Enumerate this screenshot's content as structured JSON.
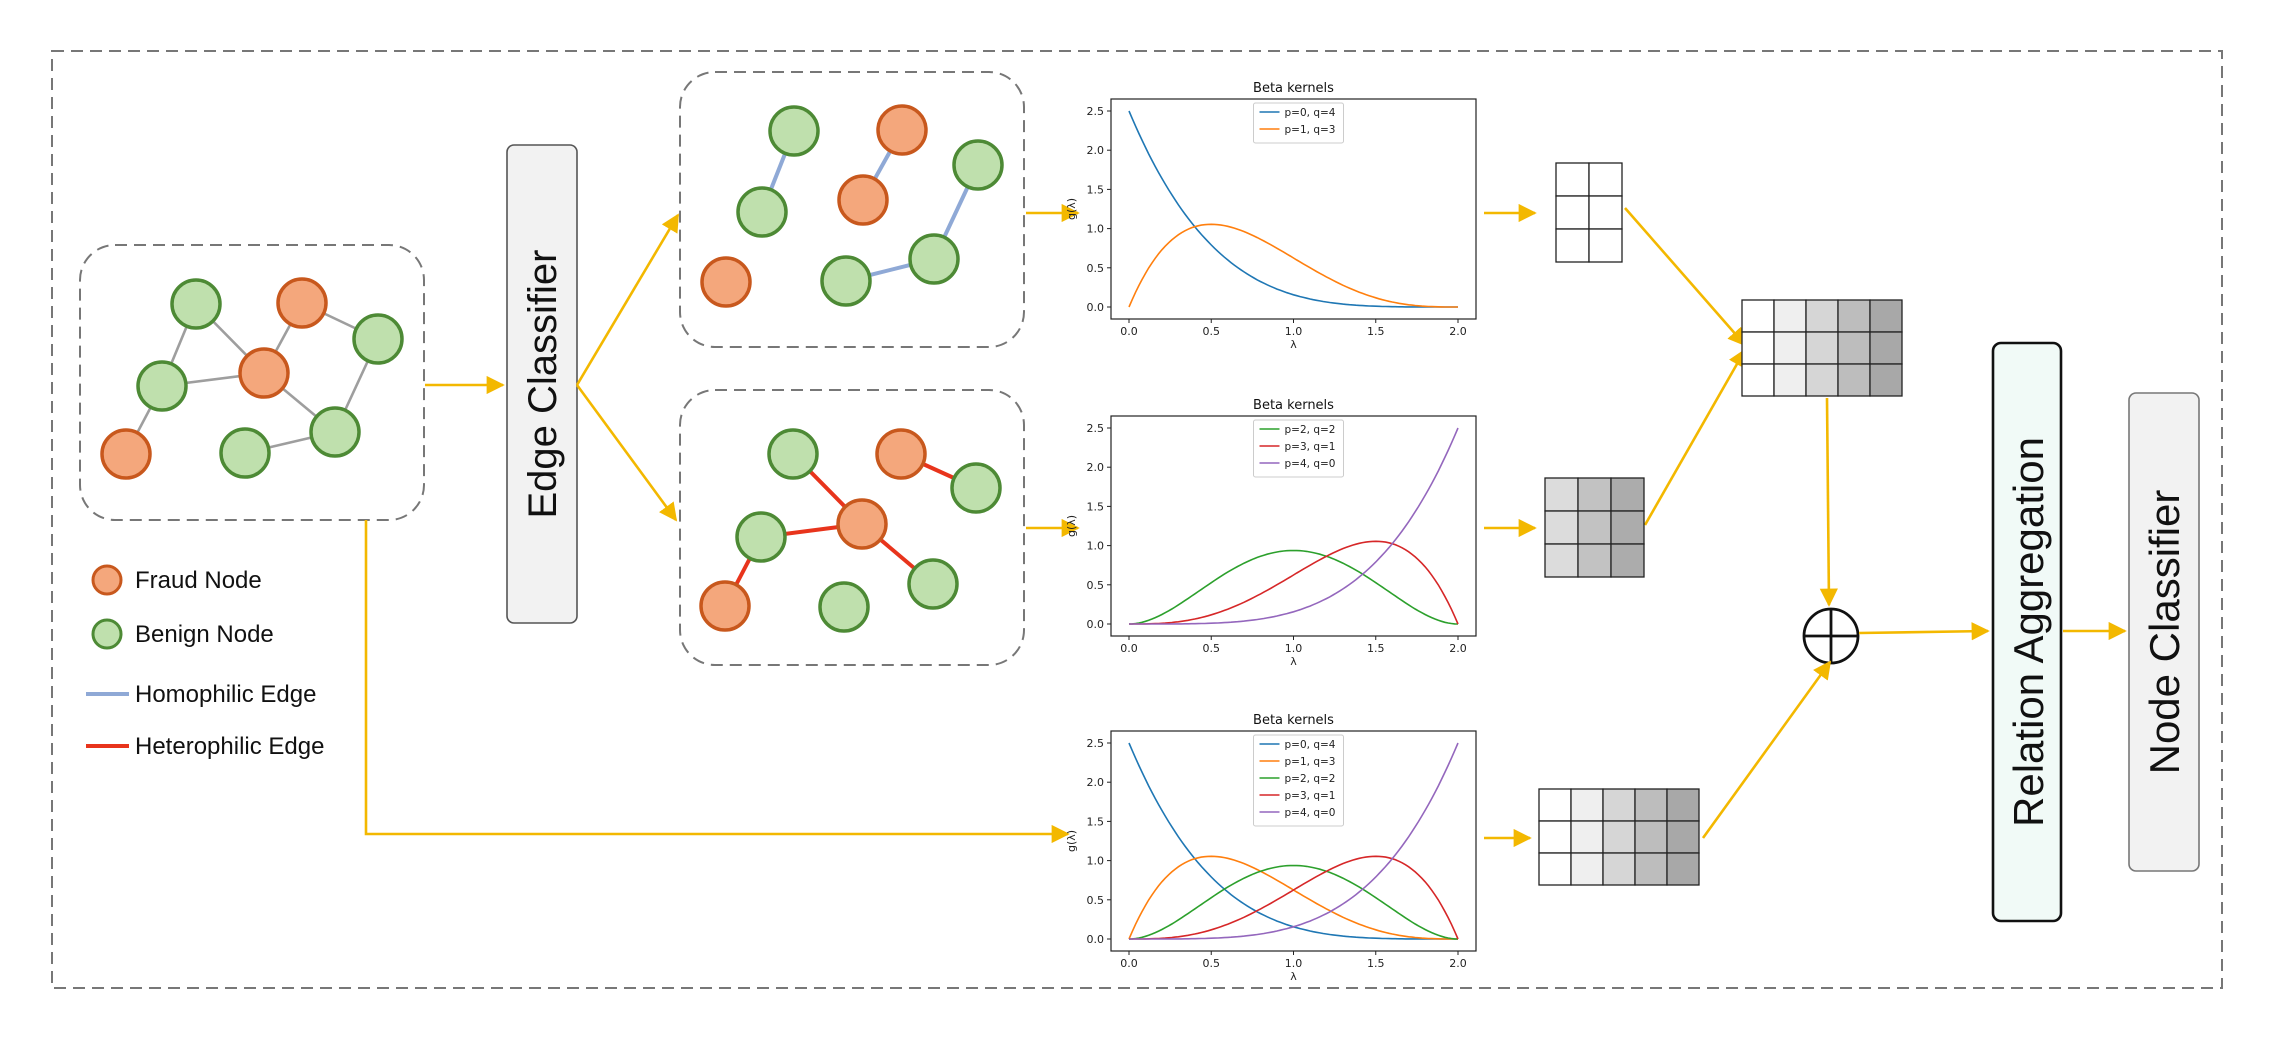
{
  "colors": {
    "fraud_fill": "#f4a77c",
    "fraud_stroke": "#c8581d",
    "benign_fill": "#bfe0ad",
    "benign_stroke": "#4d8a35",
    "homophilic_edge": "#8fa9d6",
    "heterophilic_edge": "#e8341c",
    "neutral_edge": "#9e9e9e",
    "arrow": "#f3b800",
    "series": [
      "#1f77b4",
      "#ff7f0e",
      "#2ca02c",
      "#d62728",
      "#9467bd"
    ]
  },
  "blocks": {
    "edge_classifier": "Edge Classifier",
    "relation_aggregation": "Relation Aggregation",
    "node_classifier": "Node Classifier",
    "sum_symbol": "⊕"
  },
  "legend": {
    "fraud_node": "Fraud Node",
    "benign_node": "Benign Node",
    "homophilic_edge": "Homophilic Edge",
    "heterophilic_edge": "Heterophilic Edge"
  },
  "chart_data": [
    {
      "type": "line",
      "title": "Beta kernels",
      "xlabel": "λ",
      "ylabel": "g(λ)",
      "xlim": [
        0,
        2
      ],
      "ylim": [
        0,
        2.5
      ],
      "xticks": [
        "0.0",
        "0.5",
        "1.0",
        "1.5",
        "2.0"
      ],
      "yticks": [
        "0.0",
        "0.5",
        "1.0",
        "1.5",
        "2.0",
        "2.5"
      ],
      "legend_position": "top-center",
      "series": [
        {
          "name": "p=0, q=4",
          "p": 0,
          "q": 4,
          "color_index": 0
        },
        {
          "name": "p=1, q=3",
          "p": 1,
          "q": 3,
          "color_index": 1
        }
      ]
    },
    {
      "type": "line",
      "title": "Beta kernels",
      "xlabel": "λ",
      "ylabel": "g(λ)",
      "xlim": [
        0,
        2
      ],
      "ylim": [
        0,
        2.5
      ],
      "xticks": [
        "0.0",
        "0.5",
        "1.0",
        "1.5",
        "2.0"
      ],
      "yticks": [
        "0.0",
        "0.5",
        "1.0",
        "1.5",
        "2.0",
        "2.5"
      ],
      "legend_position": "top-center",
      "series": [
        {
          "name": "p=2, q=2",
          "p": 2,
          "q": 2,
          "color_index": 2
        },
        {
          "name": "p=3, q=1",
          "p": 3,
          "q": 1,
          "color_index": 3
        },
        {
          "name": "p=4, q=0",
          "p": 4,
          "q": 0,
          "color_index": 4
        }
      ]
    },
    {
      "type": "line",
      "title": "Beta kernels",
      "xlabel": "λ",
      "ylabel": "g(λ)",
      "xlim": [
        0,
        2
      ],
      "ylim": [
        0,
        2.5
      ],
      "xticks": [
        "0.0",
        "0.5",
        "1.0",
        "1.5",
        "2.0"
      ],
      "yticks": [
        "0.0",
        "0.5",
        "1.0",
        "1.5",
        "2.0",
        "2.5"
      ],
      "legend_position": "top-center",
      "series": [
        {
          "name": "p=0, q=4",
          "p": 0,
          "q": 4,
          "color_index": 0
        },
        {
          "name": "p=1, q=3",
          "p": 1,
          "q": 3,
          "color_index": 1
        },
        {
          "name": "p=2, q=2",
          "p": 2,
          "q": 2,
          "color_index": 2
        },
        {
          "name": "p=3, q=1",
          "p": 3,
          "q": 1,
          "color_index": 3
        },
        {
          "name": "p=4, q=0",
          "p": 4,
          "q": 0,
          "color_index": 4
        }
      ]
    }
  ],
  "feature_grids": [
    {
      "rows": 3,
      "cols": 2,
      "shades": [
        [
          "#ffffff",
          "#ffffff"
        ],
        [
          "#ffffff",
          "#ffffff"
        ],
        [
          "#ffffff",
          "#ffffff"
        ]
      ]
    },
    {
      "rows": 3,
      "cols": 3,
      "shades": [
        [
          "#dcdcdc",
          "#c2c2c2",
          "#acacac"
        ],
        [
          "#dcdcdc",
          "#c2c2c2",
          "#acacac"
        ],
        [
          "#dcdcdc",
          "#c2c2c2",
          "#acacac"
        ]
      ]
    },
    {
      "rows": 3,
      "cols": 5,
      "shades": [
        [
          "#ffffff",
          "#efefef",
          "#d6d6d6",
          "#bdbdbd",
          "#a8a8a8"
        ],
        [
          "#ffffff",
          "#efefef",
          "#d6d6d6",
          "#bdbdbd",
          "#a8a8a8"
        ],
        [
          "#ffffff",
          "#efefef",
          "#d6d6d6",
          "#bdbdbd",
          "#a8a8a8"
        ]
      ]
    },
    {
      "rows": 3,
      "cols": 5,
      "shades": [
        [
          "#ffffff",
          "#efefef",
          "#d6d6d6",
          "#bdbdbd",
          "#a8a8a8"
        ],
        [
          "#ffffff",
          "#efefef",
          "#d6d6d6",
          "#bdbdbd",
          "#a8a8a8"
        ],
        [
          "#ffffff",
          "#efefef",
          "#d6d6d6",
          "#bdbdbd",
          "#a8a8a8"
        ]
      ]
    }
  ]
}
